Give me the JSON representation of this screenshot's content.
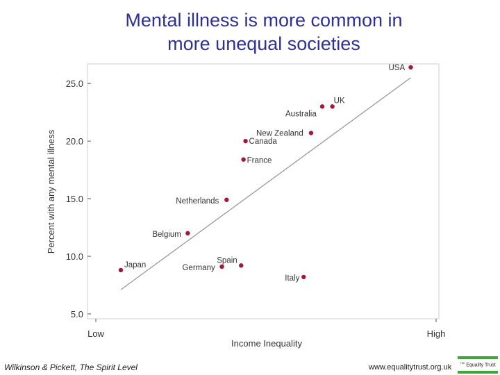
{
  "chart_data": {
    "type": "scatter",
    "title": "Mental illness is more common in more unequal societies",
    "title_lines": [
      "Mental illness is more common in",
      "more unequal societies"
    ],
    "xlabel": "Income Inequality",
    "ylabel": "Percent with any mental illness",
    "x_ticks": [
      {
        "value": 0,
        "label": "Low"
      },
      {
        "value": 1,
        "label": "High"
      }
    ],
    "xlim": [
      -0.007,
      1.0
    ],
    "ylim": [
      4.7,
      26.7
    ],
    "y_ticks": [
      5.0,
      10.0,
      15.0,
      20.0,
      25.0
    ],
    "y_tick_labels": [
      "5.0",
      "10.0",
      "15.0",
      "20.0",
      "25.0"
    ],
    "grid": false,
    "point_color": "#a4173a",
    "line_color": "#999999",
    "points": [
      {
        "label": "USA",
        "x": 0.925,
        "y": 26.4
      },
      {
        "label": "UK",
        "x": 0.693,
        "y": 23.0
      },
      {
        "label": "Australia",
        "x": 0.663,
        "y": 23.0
      },
      {
        "label": "New Zealand",
        "x": 0.63,
        "y": 20.7
      },
      {
        "label": "Canada",
        "x": 0.436,
        "y": 20.0
      },
      {
        "label": "France",
        "x": 0.43,
        "y": 18.4
      },
      {
        "label": "Netherlands",
        "x": 0.38,
        "y": 14.9
      },
      {
        "label": "Belgium",
        "x": 0.265,
        "y": 12.0
      },
      {
        "label": "Spain",
        "x": 0.423,
        "y": 9.2
      },
      {
        "label": "Germany",
        "x": 0.366,
        "y": 9.1
      },
      {
        "label": "Japan",
        "x": 0.067,
        "y": 8.8
      },
      {
        "label": "Italy",
        "x": 0.608,
        "y": 8.2
      }
    ],
    "trend_line": {
      "x": [
        0.067,
        0.925
      ],
      "y": [
        7.1,
        25.5
      ]
    }
  },
  "footer": {
    "citation": "Wilkinson & Pickett, The Spirit Level",
    "website": "www.equalitytrust.org.uk",
    "logo_the": "The",
    "logo_text": "Equality Trust",
    "brand_color": "#3aa935"
  }
}
